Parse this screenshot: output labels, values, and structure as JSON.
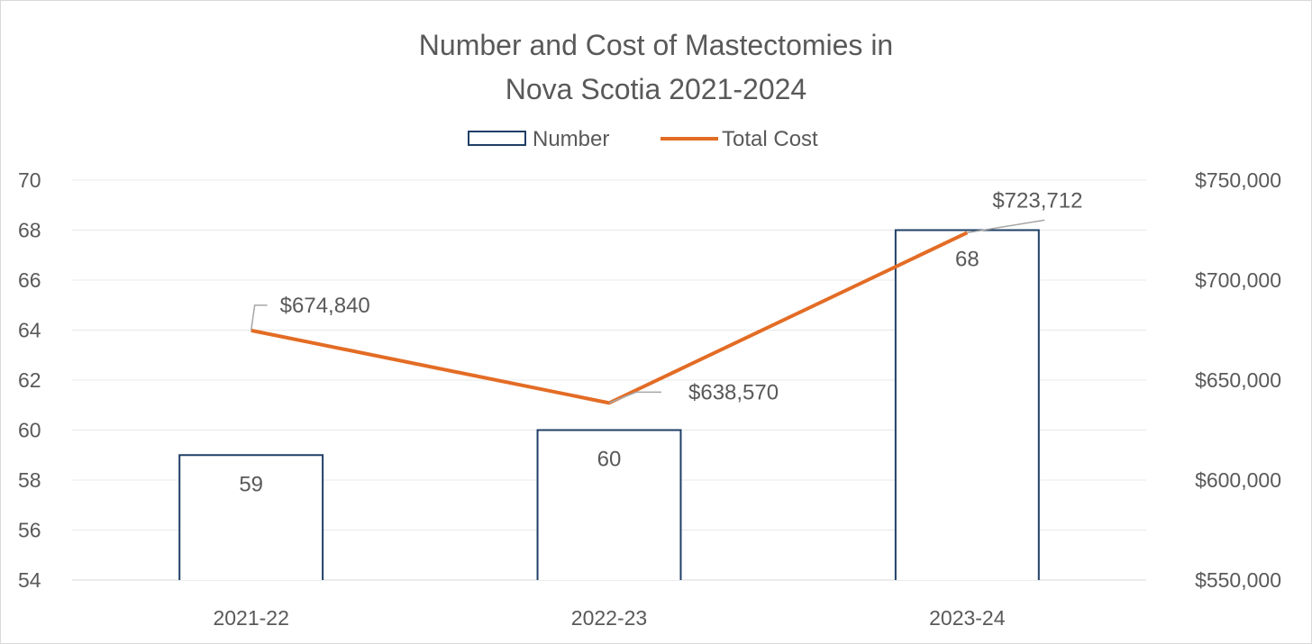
{
  "chart_data": {
    "type": "bar+line",
    "title_lines": [
      "Number and Cost of Mastectomies in",
      "Nova Scotia 2021-2024"
    ],
    "categories": [
      "2021-22",
      "2022-23",
      "2023-24"
    ],
    "series": [
      {
        "name": "Number",
        "type": "bar",
        "axis": "left",
        "values": [
          59,
          60,
          68
        ],
        "labels": [
          "59",
          "60",
          "68"
        ]
      },
      {
        "name": "Total Cost",
        "type": "line",
        "axis": "right",
        "values": [
          674840,
          638570,
          723712
        ],
        "labels": [
          "$674,840",
          "$638,570",
          "$723,712"
        ]
      }
    ],
    "y_left": {
      "min": 54,
      "max": 70,
      "step": 2,
      "ticks": [
        "54",
        "56",
        "58",
        "60",
        "62",
        "64",
        "66",
        "68",
        "70"
      ]
    },
    "y_right": {
      "min": 550000,
      "max": 750000,
      "step": 50000,
      "ticks": [
        "$550,000",
        "$600,000",
        "$650,000",
        "$700,000",
        "$750,000"
      ]
    },
    "legend": {
      "position": "top",
      "items": [
        "Number",
        "Total Cost"
      ]
    },
    "grid": true,
    "colors": {
      "bar_outline": "#1f3f66",
      "line": "#e36c25",
      "text": "#595959"
    }
  }
}
